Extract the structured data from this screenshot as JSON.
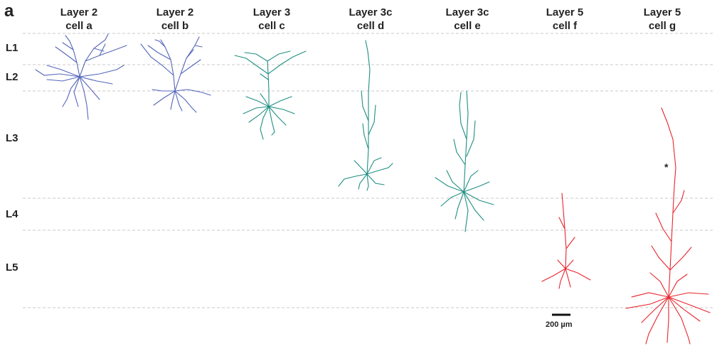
{
  "panel_label": "a",
  "columns": [
    {
      "line1": "Layer 2",
      "line2": "cell a"
    },
    {
      "line1": "Layer 2",
      "line2": "cell b"
    },
    {
      "line1": "Layer 3",
      "line2": "cell c"
    },
    {
      "line1": "Layer 3c",
      "line2": "cell d"
    },
    {
      "line1": "Layer 3c",
      "line2": "cell e"
    },
    {
      "line1": "Layer 5",
      "line2": "cell f"
    },
    {
      "line1": "Layer 5",
      "line2": "cell g"
    }
  ],
  "layers": [
    "L1",
    "L2",
    "L3",
    "L4",
    "L5"
  ],
  "scale_bar": {
    "label": "200 µm"
  },
  "annotation": "*",
  "colors": {
    "layer2": "#5566bb",
    "layer3": "#1f8f83",
    "layer5": "#e8242c",
    "boundary": "#c8c8c8"
  }
}
